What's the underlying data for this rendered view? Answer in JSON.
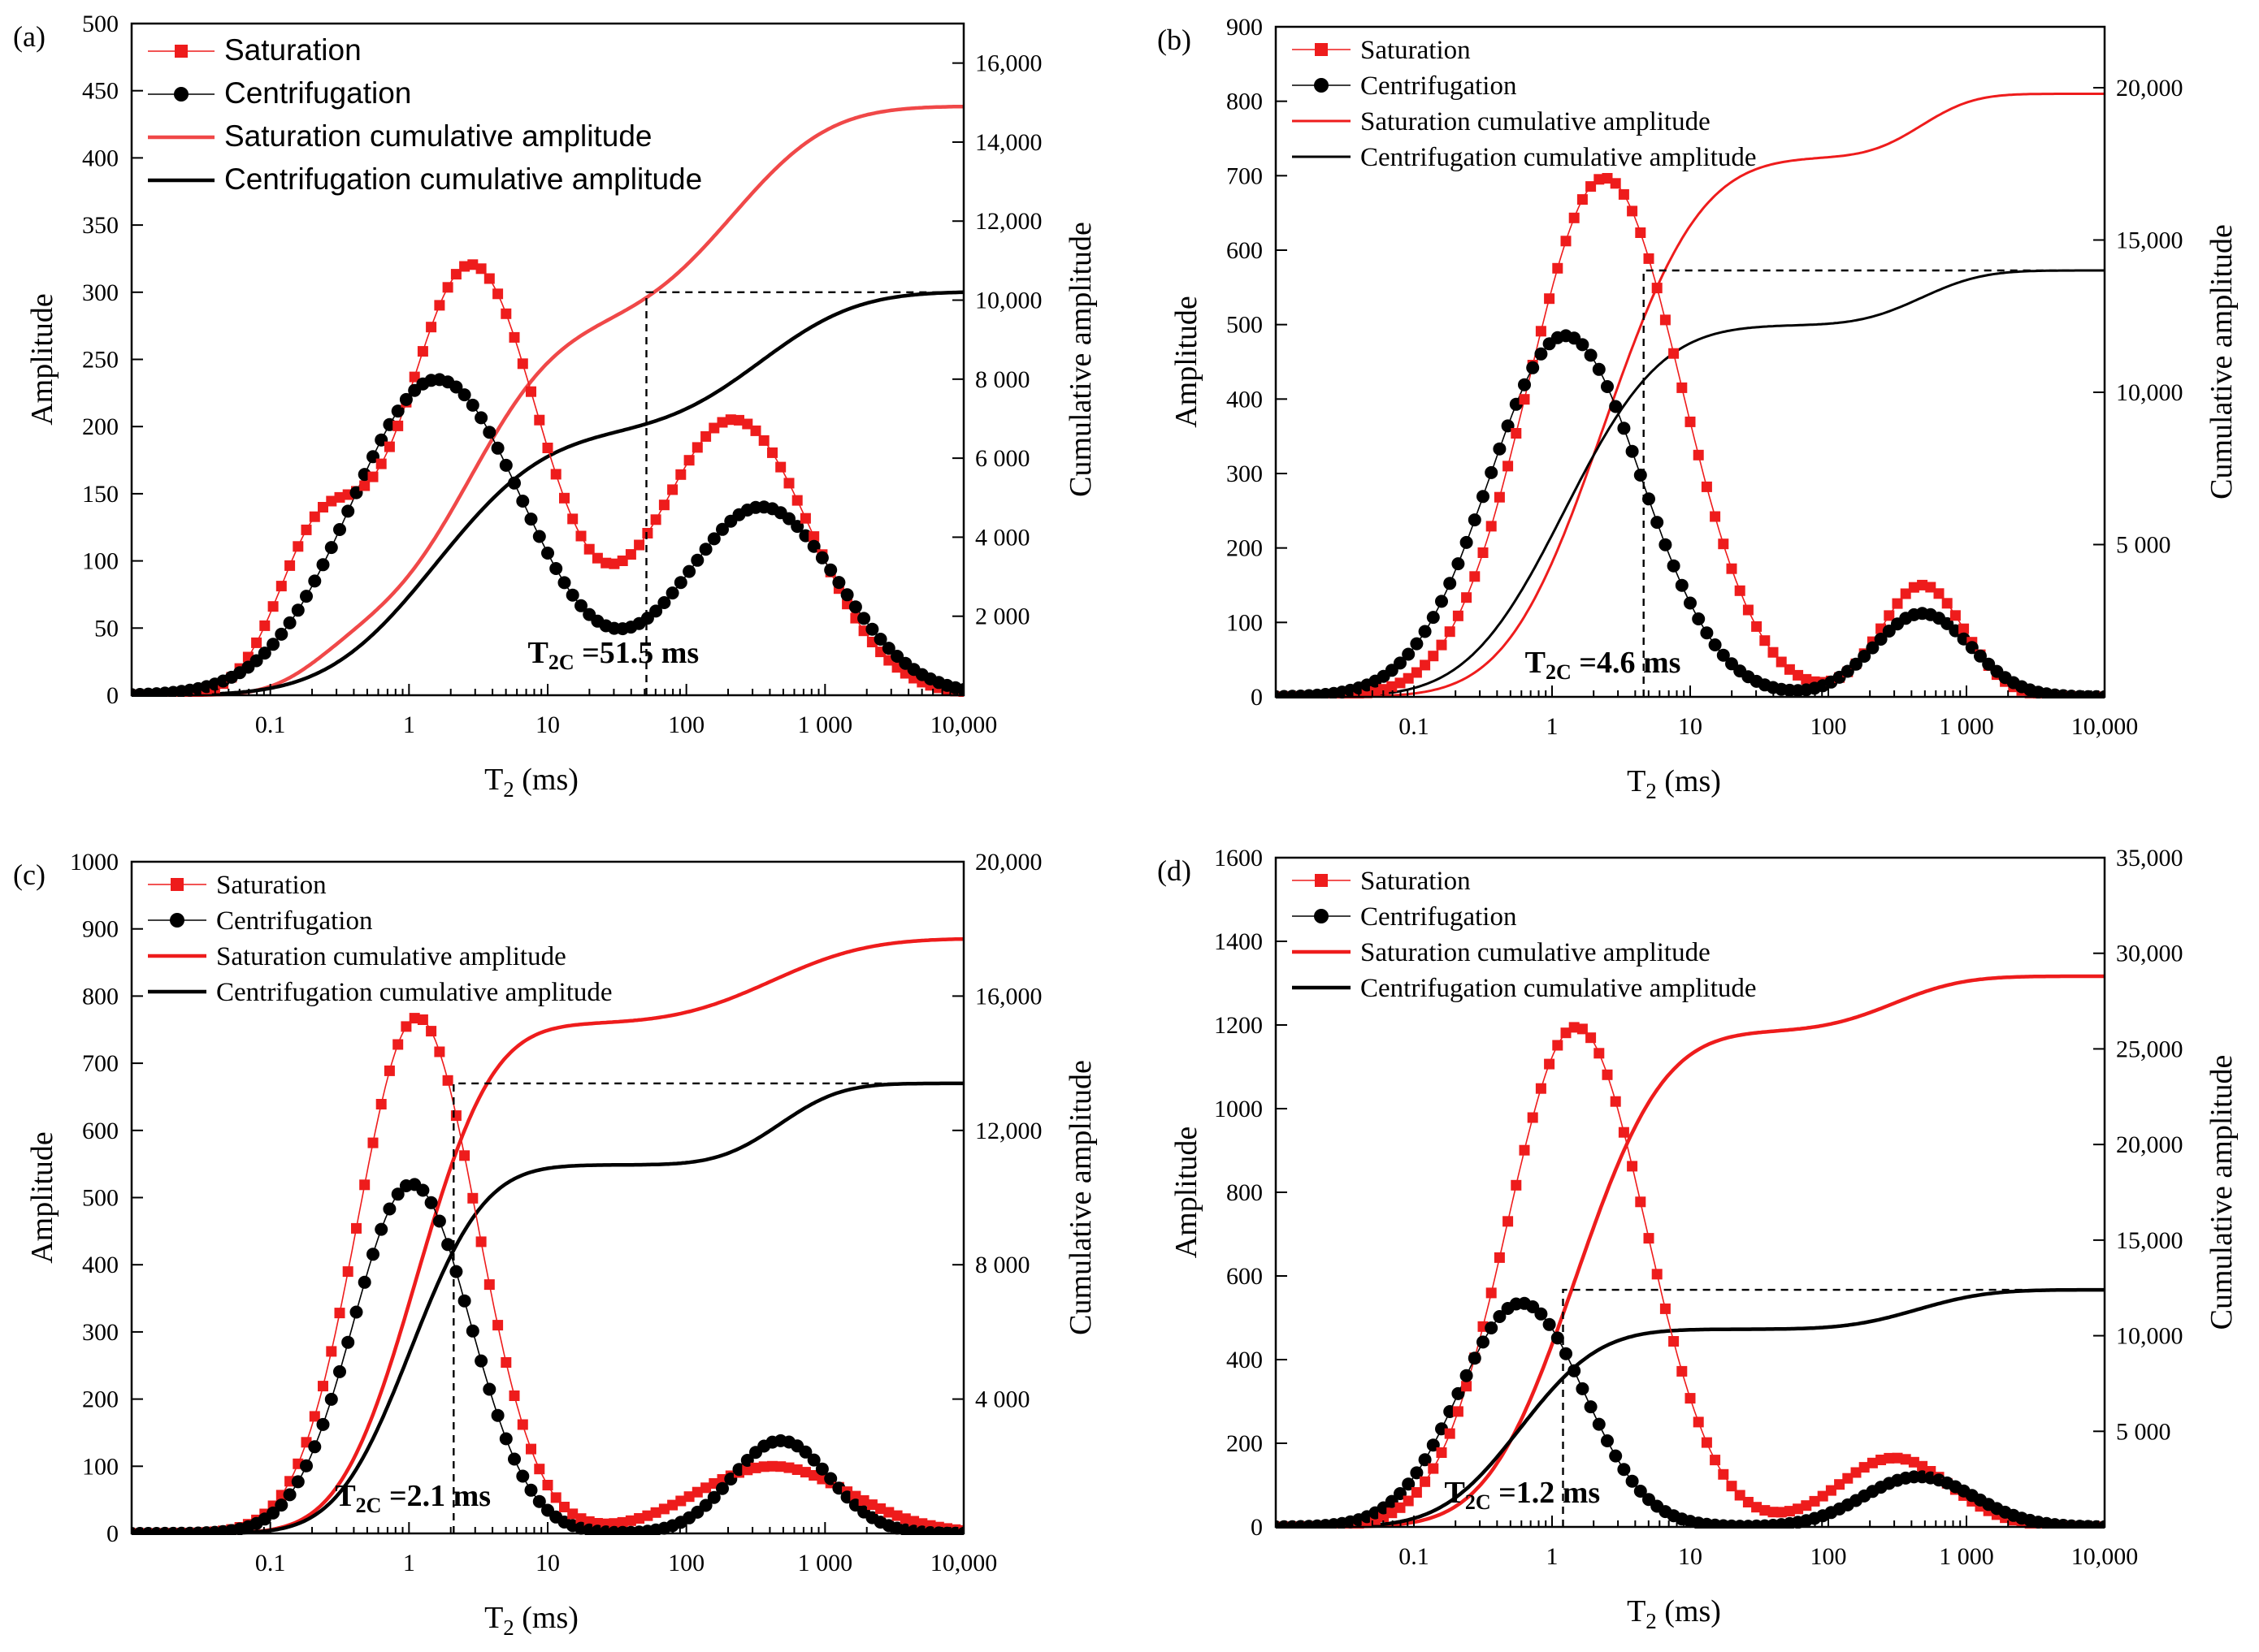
{
  "figure": {
    "axis_titles": {
      "x_main": "T",
      "x_sub": "2",
      "x_unit": " (ms)",
      "y_left": "Amplitude",
      "y_right": "Cumulative amplitude"
    },
    "series_names": {
      "saturation": "Saturation",
      "centrifugation": "Centrifugation",
      "saturation_cumulative": "Saturation cumulative amplitude",
      "centrifugation_cumulative": "Centrifugation cumulative amplitude"
    },
    "colors": {
      "saturation": "#ee1c1c",
      "saturation_cumulative_light": "#f04848",
      "centrifugation": "#000000"
    }
  },
  "chart_data": [
    {
      "panel": "(a)",
      "type": "line",
      "xscale": "log",
      "xlim": [
        0.01,
        10000
      ],
      "x_ticks": [
        0.1,
        1,
        10,
        100,
        1000,
        10000
      ],
      "x_tick_labels": [
        "0.1",
        "1",
        "10",
        "100",
        "1 000",
        "10,000"
      ],
      "ylim_left": [
        0,
        500
      ],
      "y_left_ticks": [
        0,
        50,
        100,
        150,
        200,
        250,
        300,
        350,
        400,
        450,
        500
      ],
      "y_left_tick_labels": [
        "0",
        "50",
        "100",
        "150",
        "200",
        "250",
        "300",
        "350",
        "400",
        "450",
        "500"
      ],
      "ylim_right": [
        0,
        17000
      ],
      "y_right_ticks": [
        2000,
        4000,
        6000,
        8000,
        10000,
        12000,
        14000,
        16000
      ],
      "y_right_tick_labels": [
        "2 000",
        "4 000",
        "6 000",
        "8 000",
        "10,000",
        "12,000",
        "14,000",
        "16,000"
      ],
      "saturation_peaks": [
        {
          "t2": 0.22,
          "amplitude": 108,
          "width_decades": 0.3
        },
        {
          "t2": 2.8,
          "amplitude": 320,
          "width_decades": 0.5
        },
        {
          "t2": 220,
          "amplitude": 205,
          "width_decades": 0.55
        }
      ],
      "centrifugation_peaks": [
        {
          "t2": 1.6,
          "amplitude": 235,
          "width_decades": 0.62
        },
        {
          "t2": 350,
          "amplitude": 140,
          "width_decades": 0.55
        }
      ],
      "saturation_cumulative_final": 14900,
      "centrifugation_cumulative_final": 10200,
      "t2_cutoff_ms": 51.5,
      "annotation": {
        "prefix": "T",
        "sub": "2C",
        "rest": " =51.5 ms"
      }
    },
    {
      "panel": "(b)",
      "type": "line",
      "xscale": "log",
      "xlim": [
        0.01,
        10000
      ],
      "x_ticks": [
        0.1,
        1,
        10,
        100,
        1000,
        10000
      ],
      "x_tick_labels": [
        "0.1",
        "1",
        "10",
        "100",
        "1 000",
        "10,000"
      ],
      "ylim_left": [
        0,
        900
      ],
      "y_left_ticks": [
        0,
        100,
        200,
        300,
        400,
        500,
        600,
        700,
        800,
        900
      ],
      "y_left_tick_labels": [
        "0",
        "100",
        "200",
        "300",
        "400",
        "500",
        "600",
        "700",
        "800",
        "900"
      ],
      "ylim_right": [
        0,
        22000
      ],
      "y_right_ticks": [
        5000,
        10000,
        15000,
        20000
      ],
      "y_right_tick_labels": [
        "5 000",
        "10,000",
        "15,000",
        "20,000"
      ],
      "saturation_peaks": [
        {
          "t2": 2.4,
          "amplitude": 697,
          "width_decades": 0.55
        },
        {
          "t2": 480,
          "amplitude": 150,
          "width_decades": 0.3
        }
      ],
      "centrifugation_peaks": [
        {
          "t2": 1.25,
          "amplitude": 485,
          "width_decades": 0.55
        },
        {
          "t2": 480,
          "amplitude": 112,
          "width_decades": 0.35
        }
      ],
      "saturation_cumulative_final": 19800,
      "centrifugation_cumulative_final": 14000,
      "t2_cutoff_ms": 4.6,
      "annotation": {
        "prefix": "T",
        "sub": "2C",
        "rest": " =4.6 ms"
      }
    },
    {
      "panel": "(c)",
      "type": "line",
      "xscale": "log",
      "xlim": [
        0.01,
        10000
      ],
      "x_ticks": [
        0.1,
        1,
        10,
        100,
        1000,
        10000
      ],
      "x_tick_labels": [
        "0.1",
        "1",
        "10",
        "100",
        "1 000",
        "10,000"
      ],
      "ylim_left": [
        0,
        1000
      ],
      "y_left_ticks": [
        0,
        100,
        200,
        300,
        400,
        500,
        600,
        700,
        800,
        900,
        1000
      ],
      "y_left_tick_labels": [
        "0",
        "100",
        "200",
        "300",
        "400",
        "500",
        "600",
        "700",
        "800",
        "900",
        "1000"
      ],
      "ylim_right": [
        0,
        20000
      ],
      "y_right_ticks": [
        4000,
        8000,
        12000,
        16000,
        20000
      ],
      "y_right_tick_labels": [
        "4 000",
        "8 000",
        "12,000",
        "16,000",
        "20,000"
      ],
      "saturation_peaks": [
        {
          "t2": 1.15,
          "amplitude": 768,
          "width_decades": 0.43
        },
        {
          "t2": 420,
          "amplitude": 100,
          "width_decades": 0.55
        }
      ],
      "centrifugation_peaks": [
        {
          "t2": 1.05,
          "amplitude": 520,
          "width_decades": 0.42
        },
        {
          "t2": 480,
          "amplitude": 138,
          "width_decades": 0.35
        }
      ],
      "saturation_cumulative_final": 17700,
      "centrifugation_cumulative_final": 13400,
      "t2_cutoff_ms": 2.1,
      "annotation": {
        "prefix": "T",
        "sub": "2C",
        "rest": " =2.1 ms"
      }
    },
    {
      "panel": "(d)",
      "type": "line",
      "xscale": "log",
      "xlim": [
        0.01,
        10000
      ],
      "x_ticks": [
        0.1,
        1,
        10,
        100,
        1000,
        10000
      ],
      "x_tick_labels": [
        "0.1",
        "1",
        "10",
        "100",
        "1 000",
        "10,000"
      ],
      "ylim_left": [
        0,
        1600
      ],
      "y_left_ticks": [
        0,
        200,
        400,
        600,
        800,
        1000,
        1200,
        1400,
        1600
      ],
      "y_left_tick_labels": [
        "0",
        "200",
        "400",
        "600",
        "800",
        "1000",
        "1200",
        "1400",
        "1600"
      ],
      "ylim_right": [
        0,
        35000
      ],
      "y_right_ticks": [
        5000,
        10000,
        15000,
        20000,
        25000,
        30000,
        35000
      ],
      "y_right_tick_labels": [
        "5 000",
        "10,000",
        "15,000",
        "20,000",
        "25,000",
        "30,000",
        "35,000"
      ],
      "saturation_peaks": [
        {
          "t2": 1.5,
          "amplitude": 1195,
          "width_decades": 0.5
        },
        {
          "t2": 300,
          "amplitude": 165,
          "width_decades": 0.4
        }
      ],
      "centrifugation_peaks": [
        {
          "t2": 0.6,
          "amplitude": 535,
          "width_decades": 0.45
        },
        {
          "t2": 450,
          "amplitude": 120,
          "width_decades": 0.4
        }
      ],
      "saturation_cumulative_final": 28800,
      "centrifugation_cumulative_final": 12400,
      "t2_cutoff_ms": 1.2,
      "annotation": {
        "prefix": "T",
        "sub": "2C",
        "rest": " =1.2 ms"
      }
    }
  ]
}
